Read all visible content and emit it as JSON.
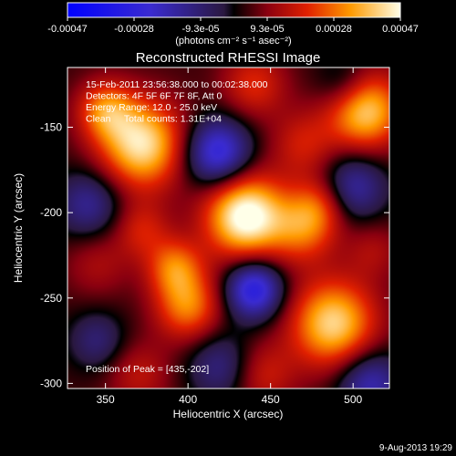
{
  "colorbar": {
    "tick_labels": [
      "-0.00047",
      "-0.00028",
      "-9.3e-05",
      "9.3e-05",
      "0.00028",
      "0.00047"
    ],
    "units": "(photons cm⁻² s⁻¹ asec⁻²)",
    "range": [
      -0.00047,
      0.00047
    ]
  },
  "chart_data": {
    "type": "heatmap",
    "title": "Reconstructed RHESSI Image",
    "xlabel": "Heliocentric X (arcsec)",
    "ylabel": "Heliocentric Y (arcsec)",
    "xlim": [
      327,
      522
    ],
    "ylim": [
      -303,
      -115
    ],
    "x_ticks": [
      350,
      400,
      450,
      500
    ],
    "y_ticks": [
      -150,
      -200,
      -250,
      -300
    ],
    "annotations": [
      "15-Feb-2011 23:56:38.000 to 00:02:38.000",
      "Detectors: 4F 5F 6F 7F 8F, Att 0",
      "Energy Range: 12.0 - 25.0 keV",
      "Clean     Total counts: 1.31E+04"
    ],
    "peak_label": "Position of Peak = [435,-202]",
    "peak": [
      435,
      -202
    ],
    "sources": [
      {
        "x": 435,
        "y": -202,
        "amp": 1.0,
        "sigma": 17
      },
      {
        "x": 372,
        "y": -160,
        "amp": 0.85,
        "sigma": 18
      },
      {
        "x": 350,
        "y": -140,
        "amp": 0.5,
        "sigma": 12
      },
      {
        "x": 507,
        "y": -140,
        "amp": 0.8,
        "sigma": 16
      },
      {
        "x": 488,
        "y": -265,
        "amp": 0.8,
        "sigma": 18
      },
      {
        "x": 400,
        "y": -255,
        "amp": 0.55,
        "sigma": 14
      },
      {
        "x": 392,
        "y": -232,
        "amp": 0.5,
        "sigma": 12
      },
      {
        "x": 470,
        "y": -210,
        "amp": 0.45,
        "sigma": 14
      },
      {
        "x": 470,
        "y": -160,
        "amp": 0.3,
        "sigma": 14
      },
      {
        "x": 480,
        "y": -195,
        "amp": 0.35,
        "sigma": 12
      },
      {
        "x": 372,
        "y": -210,
        "amp": 0.3,
        "sigma": 12
      },
      {
        "x": 440,
        "y": -125,
        "amp": 0.35,
        "sigma": 14
      },
      {
        "x": 345,
        "y": -230,
        "amp": 0.2,
        "sigma": 14
      },
      {
        "x": 445,
        "y": -295,
        "amp": 0.3,
        "sigma": 14
      },
      {
        "x": 370,
        "y": -295,
        "amp": 0.25,
        "sigma": 14
      },
      {
        "x": 512,
        "y": -222,
        "amp": 0.2,
        "sigma": 12
      },
      {
        "x": 440,
        "y": -245,
        "amp": -0.75,
        "sigma": 12
      },
      {
        "x": 418,
        "y": -165,
        "amp": -0.7,
        "sigma": 14
      },
      {
        "x": 500,
        "y": -185,
        "amp": -0.45,
        "sigma": 14
      },
      {
        "x": 340,
        "y": -195,
        "amp": -0.4,
        "sigma": 14
      },
      {
        "x": 510,
        "y": -300,
        "amp": -0.5,
        "sigma": 14
      },
      {
        "x": 420,
        "y": -290,
        "amp": -0.35,
        "sigma": 14
      },
      {
        "x": 495,
        "y": -125,
        "amp": -0.3,
        "sigma": 12
      },
      {
        "x": 345,
        "y": -275,
        "amp": -0.3,
        "sigma": 12
      }
    ]
  },
  "footer": {
    "timestamp": "9-Aug-2013 19:29"
  }
}
